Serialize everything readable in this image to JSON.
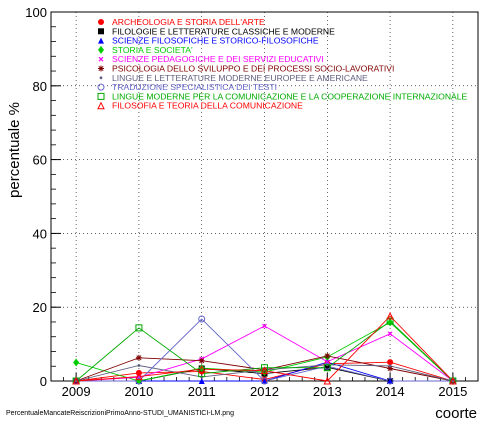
{
  "footer_filename": "PercentualeMancateReiscrizioniPrimoAnno-STUDI_UMANISTICI-LM.png",
  "chart_data": {
    "type": "line",
    "title": "",
    "ylabel": "percentuale %",
    "xlabel": "coorte",
    "x": [
      2009,
      2010,
      2011,
      2012,
      2013,
      2014,
      2015
    ],
    "x_ticks": [
      "2009",
      "2010",
      "2011",
      "2012",
      "2013",
      "2014",
      "2015"
    ],
    "y_ticks": [
      "0",
      "20",
      "40",
      "60",
      "80",
      "100"
    ],
    "ylim": [
      0,
      100
    ],
    "xlim": [
      2008.6,
      2015.4
    ],
    "grid": true,
    "legend_position": "top",
    "series": [
      {
        "name": "ARCHEOLOGIA E STORIA DELL'ARTE",
        "color": "#ff0000",
        "marker": "circle-filled",
        "values": [
          0,
          2.2,
          2.6,
          0.4,
          4.7,
          5.1,
          0
        ]
      },
      {
        "name": "FILOLOGIE E LETTERATURE CLASSICHE E MODERNE",
        "color": "#000000",
        "marker": "square-filled",
        "values": [
          0,
          0,
          3.4,
          2.0,
          3.7,
          0,
          0
        ]
      },
      {
        "name": "SCIENZE FILOSOFICHE E STORICO-FILOSOFICHE",
        "color": "#0000ff",
        "marker": "triangle-filled",
        "values": [
          0,
          0,
          0,
          0,
          5.1,
          0,
          0
        ]
      },
      {
        "name": "STORIA E SOCIETA'",
        "color": "#00cc00",
        "marker": "diamond-filled",
        "values": [
          5.0,
          0,
          3.5,
          2.4,
          6.5,
          15.9,
          0
        ]
      },
      {
        "name": "SCIENZE PEDAGOGICHE E DEI SERVIZI EDUCATIVI",
        "color": "#ff00ff",
        "marker": "cross-small",
        "values": [
          0,
          1.0,
          6.0,
          14.9,
          5.2,
          12.8,
          0
        ]
      },
      {
        "name": "PSICOLOGIA DELLO SVILUPPO E DEI PROCESSI SOCIO-LAVORATIVI",
        "color": "#800000",
        "marker": "asterisk",
        "values": [
          0,
          6.3,
          5.5,
          3.0,
          6.8,
          3.4,
          0
        ]
      },
      {
        "name": "LINGUE E LETTERATURE MODERNE EUROPEE E AMERICANE",
        "color": "#606080",
        "marker": "dot",
        "values": [
          0,
          4.2,
          1.1,
          3.0,
          4.4,
          4.1,
          0
        ]
      },
      {
        "name": "TRADUZIONE SPECIALISTICA DEI TESTI",
        "color": "#6666cc",
        "marker": "circle-open",
        "values": [
          0,
          0,
          16.8,
          0,
          4.0,
          0,
          0
        ]
      },
      {
        "name": "LINGUE MODERNE PER LA COMUNICAZIONE E LA COOPERAZIONE INTERNAZIONALE",
        "color": "#00aa00",
        "marker": "square-open",
        "values": [
          0,
          14.4,
          2.0,
          3.6,
          3.6,
          16.2,
          0
        ]
      },
      {
        "name": "FILOSOFIA E TEORIA DELLA COMUNICAZIONE",
        "color": "#ff0000",
        "marker": "triangle-open",
        "values": [
          0,
          1.2,
          3.2,
          2.8,
          0,
          17.6,
          0
        ]
      }
    ]
  }
}
